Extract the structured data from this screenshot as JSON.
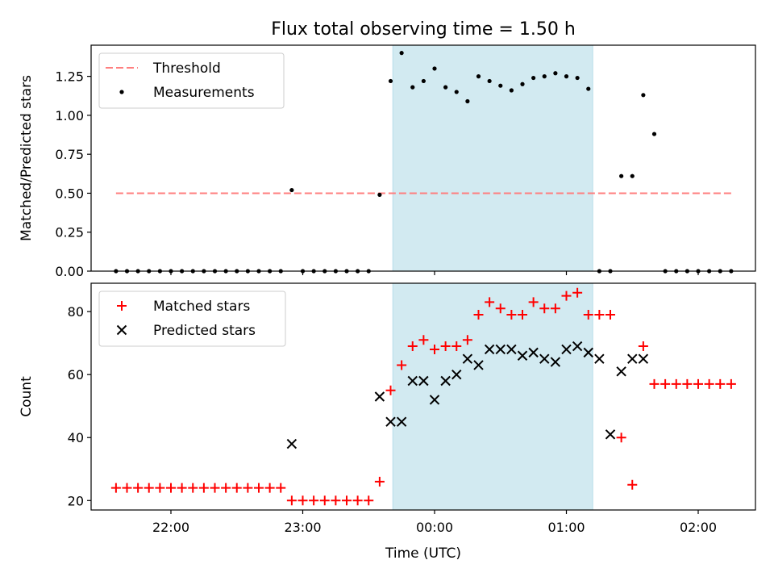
{
  "title": "Flux total observing time = 1.50 h",
  "xlabel": "Time (UTC)",
  "x_ticks": [
    "22:00",
    "23:00",
    "00:00",
    "01:00",
    "02:00"
  ],
  "colors": {
    "threshold": "#ff7f7f",
    "measurement": "#000000",
    "matched": "#ff0000",
    "predicted": "#000000",
    "highlight": "#add8e6"
  },
  "chart_data": [
    {
      "type": "scatter",
      "ylabel": "Matched/Predicted stars",
      "ylim": [
        0,
        1.45
      ],
      "y_ticks": [
        "0.00",
        "0.25",
        "0.50",
        "0.75",
        "1.00",
        "1.25"
      ],
      "legend_position": "top-left",
      "highlight_span": [
        "23:41",
        "01:12"
      ],
      "series": [
        {
          "name": "Threshold",
          "style": "dashed-line",
          "x": [
            "21:35",
            "02:15"
          ],
          "y": [
            0.5,
            0.5
          ]
        },
        {
          "name": "Measurements",
          "style": "dot",
          "x": [
            "21:35",
            "21:40",
            "21:45",
            "21:50",
            "21:55",
            "22:00",
            "22:05",
            "22:10",
            "22:15",
            "22:20",
            "22:25",
            "22:30",
            "22:35",
            "22:40",
            "22:45",
            "22:50",
            "22:55",
            "23:00",
            "23:05",
            "23:10",
            "23:15",
            "23:20",
            "23:25",
            "23:30",
            "23:35",
            "23:40",
            "23:45",
            "23:50",
            "23:55",
            "00:00",
            "00:05",
            "00:10",
            "00:15",
            "00:20",
            "00:25",
            "00:30",
            "00:35",
            "00:40",
            "00:45",
            "00:50",
            "00:55",
            "01:00",
            "01:05",
            "01:10",
            "01:15",
            "01:20",
            "01:25",
            "01:30",
            "01:35",
            "01:40",
            "01:45",
            "01:50",
            "01:55",
            "02:00",
            "02:05",
            "02:10",
            "02:15"
          ],
          "y": [
            0,
            0,
            0,
            0,
            0,
            0,
            0,
            0,
            0,
            0,
            0,
            0,
            0,
            0,
            0,
            0,
            0.52,
            0,
            0,
            0,
            0,
            0,
            0,
            0,
            0.49,
            1.22,
            1.4,
            1.18,
            1.22,
            1.3,
            1.18,
            1.15,
            1.09,
            1.25,
            1.22,
            1.19,
            1.16,
            1.2,
            1.24,
            1.25,
            1.27,
            1.25,
            1.24,
            1.17,
            0,
            0,
            0.61,
            0.61,
            1.13,
            0.88,
            0,
            0,
            0,
            0,
            0,
            0,
            0
          ]
        }
      ]
    },
    {
      "type": "scatter",
      "ylabel": "Count",
      "ylim": [
        17,
        89
      ],
      "y_ticks": [
        "20",
        "40",
        "60",
        "80"
      ],
      "legend_position": "top-left",
      "highlight_span": [
        "23:41",
        "01:12"
      ],
      "series": [
        {
          "name": "Matched stars",
          "marker": "+",
          "x": [
            "21:35",
            "21:40",
            "21:45",
            "21:50",
            "21:55",
            "22:00",
            "22:05",
            "22:10",
            "22:15",
            "22:20",
            "22:25",
            "22:30",
            "22:35",
            "22:40",
            "22:45",
            "22:50",
            "22:55",
            "23:00",
            "23:05",
            "23:10",
            "23:15",
            "23:20",
            "23:25",
            "23:30",
            "23:35",
            "23:40",
            "23:45",
            "23:50",
            "23:55",
            "00:00",
            "00:05",
            "00:10",
            "00:15",
            "00:20",
            "00:25",
            "00:30",
            "00:35",
            "00:40",
            "00:45",
            "00:50",
            "00:55",
            "01:00",
            "01:05",
            "01:10",
            "01:15",
            "01:20",
            "01:25",
            "01:30",
            "01:35",
            "01:40",
            "01:45",
            "01:50",
            "01:55",
            "02:00",
            "02:05",
            "02:10",
            "02:15"
          ],
          "y": [
            24,
            24,
            24,
            24,
            24,
            24,
            24,
            24,
            24,
            24,
            24,
            24,
            24,
            24,
            24,
            24,
            20,
            20,
            20,
            20,
            20,
            20,
            20,
            20,
            26,
            55,
            63,
            69,
            71,
            68,
            69,
            69,
            71,
            79,
            83,
            81,
            79,
            79,
            83,
            81,
            81,
            85,
            86,
            79,
            79,
            79,
            40,
            25,
            69,
            57,
            57,
            57,
            57,
            57,
            57,
            57,
            57
          ]
        },
        {
          "name": "Predicted stars",
          "marker": "x",
          "x": [
            "22:55",
            "23:35",
            "23:40",
            "23:45",
            "23:50",
            "23:55",
            "00:00",
            "00:05",
            "00:10",
            "00:15",
            "00:20",
            "00:25",
            "00:30",
            "00:35",
            "00:40",
            "00:45",
            "00:50",
            "00:55",
            "01:00",
            "01:05",
            "01:10",
            "01:15",
            "01:20",
            "01:25",
            "01:30",
            "01:35"
          ],
          "y": [
            38,
            53,
            45,
            45,
            58,
            58,
            52,
            58,
            60,
            65,
            63,
            68,
            68,
            68,
            66,
            67,
            65,
            64,
            68,
            69,
            67,
            65,
            41,
            61,
            65,
            65
          ]
        }
      ]
    }
  ]
}
